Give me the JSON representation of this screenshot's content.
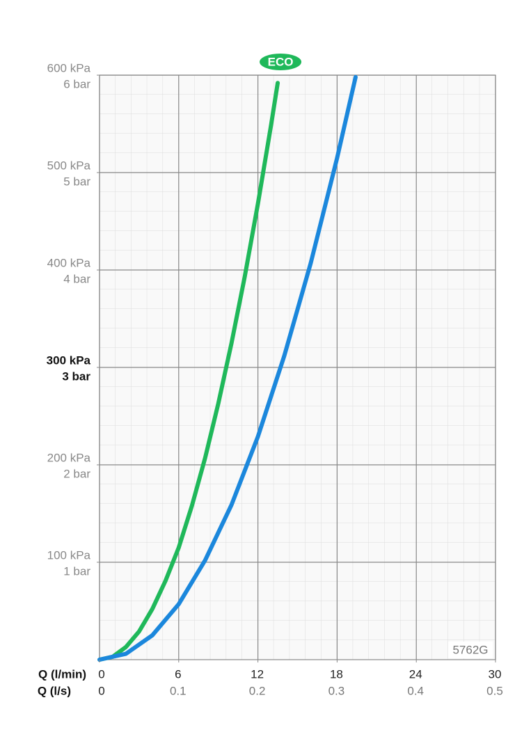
{
  "chart_data": {
    "type": "line",
    "annotation": "5762G",
    "xlabel": "Q (l/min)",
    "x2label": "Q (l/s)",
    "xlim": [
      0,
      30
    ],
    "xticks": [
      0,
      6,
      12,
      18,
      24,
      30
    ],
    "x2lim": [
      0,
      0.5
    ],
    "x2ticks": [
      0,
      0.1,
      0.2,
      0.3,
      0.4,
      0.5
    ],
    "ylim": [
      0,
      600
    ],
    "yticks": [
      {
        "value": 100,
        "label": "100 kPa"
      },
      {
        "value": 200,
        "label": "200 kPa"
      },
      {
        "value": 300,
        "label": "300 kPa",
        "bold": true
      },
      {
        "value": 400,
        "label": "400 kPa"
      },
      {
        "value": 500,
        "label": "500 kPa"
      },
      {
        "value": 600,
        "label": "600 kPa"
      }
    ],
    "y2lim": [
      0,
      6
    ],
    "y2ticks": [
      {
        "value": 1,
        "label": "1 bar"
      },
      {
        "value": 2,
        "label": "2 bar"
      },
      {
        "value": 3,
        "label": "3 bar",
        "bold": true
      },
      {
        "value": 4,
        "label": "4 bar"
      },
      {
        "value": 5,
        "label": "5 bar"
      },
      {
        "value": 6,
        "label": "6 bar"
      }
    ],
    "grid": true,
    "series": [
      {
        "name": "ECO",
        "color": "#1fb85a",
        "x": [
          0,
          1,
          2,
          3,
          4,
          5,
          6,
          7,
          8,
          9,
          10,
          11,
          12,
          13,
          13.5
        ],
        "values": [
          0,
          3,
          13,
          29,
          52,
          81,
          115,
          158,
          207,
          263,
          325,
          393,
          468,
          549,
          592
        ]
      },
      {
        "color": "#1b87dc",
        "x": [
          0,
          2,
          4,
          6,
          8,
          10,
          12,
          14,
          16,
          18,
          19.4
        ],
        "values": [
          0,
          6,
          25,
          57,
          102,
          159,
          229,
          312,
          407,
          515,
          598
        ]
      }
    ]
  }
}
